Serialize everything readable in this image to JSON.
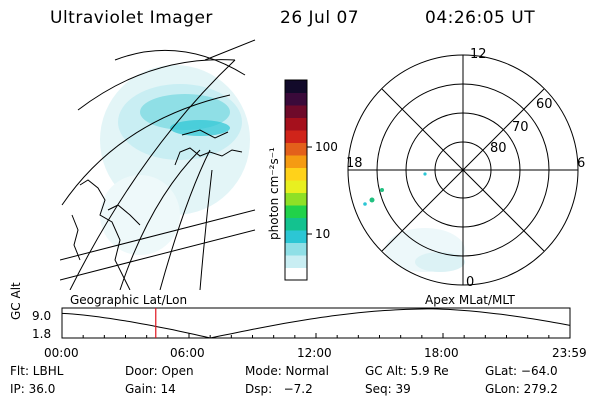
{
  "header": {
    "title": "Ultraviolet Imager",
    "date": "26 Jul 07",
    "time": "04:26:05 UT"
  },
  "colorbar": {
    "unit_label": "photon cm⁻²s⁻¹",
    "ticks": [
      "100",
      "10"
    ],
    "colors": [
      "#ffffff",
      "#c9eef3",
      "#8fdfe6",
      "#2cc6d4",
      "#13c28f",
      "#21d24a",
      "#8fe026",
      "#e8f020",
      "#ffd21a",
      "#f59b12",
      "#e3601b",
      "#d0241a",
      "#a5101c",
      "#6e0a2a",
      "#3a0a3a",
      "#120a2a"
    ]
  },
  "geo_panel": {
    "caption": "Geographic Lat/Lon"
  },
  "polar_panel": {
    "caption": "Apex MLat/MLT",
    "lat_labels": [
      "60",
      "70",
      "80"
    ],
    "mlt_labels": {
      "top": "12",
      "left": "18",
      "right": "6",
      "bottom": "0"
    }
  },
  "timeline": {
    "ylabel": "GC Alt",
    "y_top": "9.0",
    "y_bottom": "1.8",
    "ticks": [
      "00:00",
      "06:00",
      "12:00",
      "18:00",
      "23:59"
    ],
    "current_hour": 4.43,
    "accent": "#e0141e"
  },
  "info": {
    "row1": {
      "filter": "Flt: LBHL",
      "door": "Door: Open",
      "mode": "Mode: Normal",
      "gc_alt": "GC Alt: 5.9 Re",
      "glat": "GLat: −64.0"
    },
    "row2": {
      "ip": "IP: 36.0",
      "gain": "Gain: 14",
      "dsp": "Dsp:   −7.2",
      "seq": "Seq: 39",
      "glon": "GLon: 279.2"
    }
  }
}
